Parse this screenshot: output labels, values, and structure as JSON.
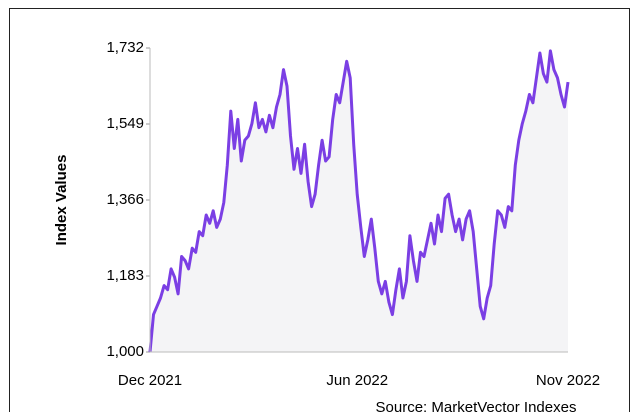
{
  "chart_data": {
    "type": "line",
    "y_label": "Index Values",
    "source": "Source: MarketVector Indexes",
    "categories": [
      "Dec 2021",
      null,
      null,
      null,
      null,
      null,
      null,
      null,
      null,
      null,
      null,
      null,
      null,
      null,
      null,
      null,
      null,
      null,
      null,
      null,
      null,
      null,
      null,
      null,
      null,
      null,
      null,
      null,
      null,
      null,
      null,
      null,
      null,
      null,
      null,
      null,
      null,
      null,
      null,
      null,
      null,
      null,
      null,
      null,
      null,
      null,
      null,
      null,
      null,
      null,
      null,
      null,
      null,
      null,
      null,
      null,
      null,
      null,
      null,
      "Jun 2022",
      null,
      null,
      null,
      null,
      null,
      null,
      null,
      null,
      null,
      null,
      null,
      null,
      null,
      null,
      null,
      null,
      null,
      null,
      null,
      null,
      null,
      null,
      null,
      null,
      null,
      null,
      null,
      null,
      null,
      null,
      null,
      null,
      null,
      null,
      null,
      null,
      null,
      null,
      null,
      null,
      null,
      null,
      null,
      null,
      null,
      null,
      null,
      null,
      null,
      null,
      null,
      null,
      null,
      null,
      null,
      null,
      null,
      null,
      null,
      "Nov 2022"
    ],
    "series": [
      {
        "name": "Index",
        "color": "#7b3fe4",
        "values": [
          1000,
          1090,
          1110,
          1130,
          1160,
          1150,
          1200,
          1180,
          1140,
          1230,
          1220,
          1200,
          1250,
          1240,
          1290,
          1280,
          1330,
          1310,
          1340,
          1300,
          1320,
          1360,
          1450,
          1580,
          1490,
          1560,
          1460,
          1510,
          1520,
          1550,
          1600,
          1540,
          1560,
          1530,
          1570,
          1540,
          1590,
          1620,
          1680,
          1640,
          1520,
          1440,
          1490,
          1430,
          1500,
          1410,
          1350,
          1380,
          1450,
          1510,
          1460,
          1470,
          1560,
          1620,
          1600,
          1650,
          1700,
          1660,
          1500,
          1380,
          1300,
          1230,
          1270,
          1320,
          1250,
          1170,
          1140,
          1170,
          1120,
          1090,
          1150,
          1200,
          1130,
          1170,
          1280,
          1220,
          1170,
          1240,
          1230,
          1270,
          1310,
          1260,
          1330,
          1290,
          1370,
          1380,
          1330,
          1290,
          1320,
          1270,
          1320,
          1340,
          1290,
          1200,
          1110,
          1080,
          1130,
          1160,
          1260,
          1340,
          1330,
          1300,
          1350,
          1340,
          1450,
          1510,
          1550,
          1580,
          1620,
          1600,
          1660,
          1720,
          1670,
          1650,
          1725,
          1680,
          1660,
          1620,
          1590,
          1650
        ]
      }
    ],
    "area_color": "#f4f4f6",
    "ylim": [
      1000,
      1732
    ],
    "yticks": [
      {
        "value": 1000,
        "label": "1,000"
      },
      {
        "value": 1183,
        "label": "1,183"
      },
      {
        "value": 1366,
        "label": "1,366"
      },
      {
        "value": 1549,
        "label": "1,549"
      },
      {
        "value": 1732,
        "label": "1,732"
      }
    ],
    "grid": false
  }
}
